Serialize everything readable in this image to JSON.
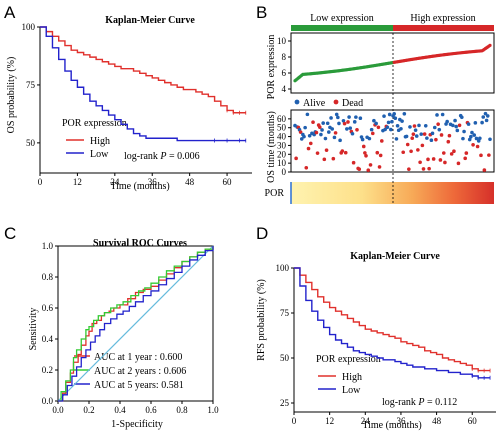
{
  "panels": {
    "A": {
      "letter": "A"
    },
    "B": {
      "letter": "B"
    },
    "C": {
      "letter": "C"
    },
    "D": {
      "letter": "D"
    }
  },
  "chart_data": [
    {
      "id": "A",
      "type": "line",
      "title": "Kaplan-Meier Curve",
      "xlabel": "Time (months)",
      "ylabel": "OS probability (%)",
      "xlim": [
        0,
        68
      ],
      "ylim": [
        37,
        100
      ],
      "xticks": [
        0,
        12,
        24,
        36,
        48,
        60
      ],
      "yticks": [
        50,
        75,
        100
      ],
      "legend_title": "POR  expression",
      "legend": "center-left",
      "annotation": {
        "prefix": "log-rank  ",
        "italic": "P",
        "suffix": " = 0.006"
      },
      "series": [
        {
          "name": "High",
          "color": "#e0302c",
          "x": [
            0,
            2,
            4,
            6,
            8,
            10,
            12,
            14,
            16,
            18,
            20,
            22,
            24,
            26,
            28,
            30,
            32,
            34,
            36,
            38,
            40,
            42,
            44,
            46,
            48,
            50,
            52,
            54,
            56,
            58,
            60,
            62,
            64,
            66
          ],
          "y": [
            100,
            98,
            96,
            94,
            92,
            90,
            89,
            88,
            87,
            86,
            85,
            84,
            83,
            82,
            82,
            81,
            80,
            79,
            78,
            77,
            76,
            75,
            74,
            73,
            73,
            72,
            71,
            70,
            68,
            66,
            64,
            63,
            63,
            63
          ]
        },
        {
          "name": "Low",
          "color": "#2222cc",
          "x": [
            0,
            2,
            4,
            6,
            8,
            10,
            12,
            14,
            16,
            18,
            20,
            22,
            24,
            26,
            28,
            30,
            32,
            34,
            36,
            38,
            40,
            44,
            48,
            52,
            56,
            60,
            64,
            66
          ],
          "y": [
            100,
            96,
            91,
            86,
            81,
            77,
            74,
            71,
            68,
            66,
            64,
            62,
            60,
            58,
            56,
            54,
            53,
            52,
            52,
            52,
            52,
            51,
            51,
            51,
            51,
            51,
            51,
            51
          ]
        }
      ]
    },
    {
      "id": "B",
      "type": "scatter",
      "group_labels": [
        "Low expression",
        "High expression"
      ],
      "group_colors": [
        "#2a9b3a",
        "#d62728"
      ],
      "top": {
        "ylabel": "POR expression",
        "ylim": [
          3.5,
          11
        ],
        "yticks": [
          4,
          6,
          8,
          10
        ],
        "n": 174,
        "split_index": 88,
        "range": [
          4.2,
          10.4
        ]
      },
      "bottom": {
        "ylabel": "OS time (months)",
        "ylim": [
          0,
          70
        ],
        "yticks": [
          0,
          10,
          20,
          30,
          40,
          50,
          60
        ],
        "legend": [
          {
            "name": "Alive",
            "color": "#2060b0"
          },
          {
            "name": "Dead",
            "color": "#d62728"
          }
        ]
      },
      "heatmap_label": "POR"
    },
    {
      "id": "C",
      "type": "line",
      "title": "Survival ROC Curves",
      "xlabel": "1-Specificity",
      "ylabel": "Sensitivity",
      "xlim": [
        0,
        1
      ],
      "ylim": [
        0,
        1
      ],
      "xticks": [
        0.0,
        0.2,
        0.4,
        0.6,
        0.8,
        1.0
      ],
      "yticks": [
        0.0,
        0.2,
        0.4,
        0.6,
        0.8,
        1.0
      ],
      "legend": "bottom-right",
      "series": [
        {
          "name": "AUC at 1 year : 0.600",
          "color": "#e0302c",
          "x": [
            0,
            0.03,
            0.05,
            0.08,
            0.1,
            0.13,
            0.15,
            0.18,
            0.2,
            0.22,
            0.25,
            0.28,
            0.3,
            0.33,
            0.36,
            0.4,
            0.45,
            0.5,
            0.55,
            0.6,
            0.65,
            0.7,
            0.75,
            0.8,
            0.85,
            0.9,
            0.95,
            1.0
          ],
          "y": [
            0,
            0.05,
            0.12,
            0.18,
            0.25,
            0.3,
            0.36,
            0.42,
            0.45,
            0.5,
            0.52,
            0.55,
            0.57,
            0.58,
            0.6,
            0.62,
            0.66,
            0.7,
            0.72,
            0.74,
            0.78,
            0.82,
            0.86,
            0.9,
            0.93,
            0.96,
            0.98,
            1.0
          ]
        },
        {
          "name": "AUC at 2 years : 0.606",
          "color": "#33cc33",
          "x": [
            0,
            0.02,
            0.05,
            0.08,
            0.1,
            0.12,
            0.15,
            0.18,
            0.2,
            0.23,
            0.26,
            0.3,
            0.34,
            0.38,
            0.42,
            0.47,
            0.52,
            0.56,
            0.6,
            0.65,
            0.7,
            0.75,
            0.8,
            0.85,
            0.9,
            0.95,
            1.0
          ],
          "y": [
            0,
            0.06,
            0.13,
            0.2,
            0.28,
            0.33,
            0.4,
            0.46,
            0.48,
            0.52,
            0.55,
            0.57,
            0.6,
            0.62,
            0.64,
            0.68,
            0.71,
            0.73,
            0.76,
            0.8,
            0.84,
            0.87,
            0.9,
            0.93,
            0.96,
            0.98,
            1.0
          ]
        },
        {
          "name": "AUC at 5 years: 0.581",
          "color": "#2222cc",
          "x": [
            0,
            0.03,
            0.06,
            0.09,
            0.12,
            0.15,
            0.18,
            0.21,
            0.24,
            0.27,
            0.3,
            0.34,
            0.38,
            0.42,
            0.46,
            0.5,
            0.55,
            0.6,
            0.65,
            0.7,
            0.75,
            0.8,
            0.85,
            0.9,
            0.95,
            1.0
          ],
          "y": [
            0,
            0.04,
            0.1,
            0.16,
            0.22,
            0.28,
            0.33,
            0.38,
            0.42,
            0.46,
            0.5,
            0.53,
            0.56,
            0.58,
            0.61,
            0.64,
            0.68,
            0.71,
            0.75,
            0.79,
            0.83,
            0.87,
            0.91,
            0.94,
            0.97,
            1.0
          ]
        }
      ]
    },
    {
      "id": "D",
      "type": "line",
      "title": "Kaplan-Meier Curve",
      "xlabel": "Time (months)",
      "ylabel": "RFS probability (%)",
      "xlim": [
        0,
        68
      ],
      "ylim": [
        20,
        100
      ],
      "xticks": [
        0,
        12,
        24,
        36,
        48,
        60
      ],
      "yticks": [
        25,
        50,
        75,
        100
      ],
      "legend_title": "POR  expression",
      "legend": "center-left",
      "annotation": {
        "prefix": "log-rank  ",
        "italic": "P",
        "suffix": " = 0.112"
      },
      "series": [
        {
          "name": "High",
          "color": "#e0302c",
          "x": [
            0,
            2,
            4,
            6,
            8,
            10,
            12,
            14,
            16,
            18,
            20,
            22,
            24,
            26,
            28,
            30,
            32,
            34,
            36,
            38,
            40,
            42,
            44,
            46,
            48,
            50,
            52,
            54,
            56,
            58,
            60,
            62,
            64,
            66
          ],
          "y": [
            100,
            96,
            92,
            88,
            84,
            81,
            78,
            76,
            74,
            72,
            70,
            68,
            66,
            65,
            64,
            63,
            62,
            61,
            59,
            58,
            57,
            56,
            54,
            53,
            52,
            50,
            49,
            48,
            47,
            46,
            44,
            43,
            43,
            43
          ]
        },
        {
          "name": "Low",
          "color": "#2222cc",
          "x": [
            0,
            2,
            4,
            6,
            8,
            10,
            12,
            14,
            16,
            18,
            20,
            22,
            24,
            26,
            28,
            30,
            32,
            34,
            36,
            38,
            40,
            42,
            44,
            46,
            48,
            50,
            52,
            54,
            56,
            58,
            60,
            62,
            64,
            66
          ],
          "y": [
            100,
            90,
            82,
            76,
            71,
            67,
            63,
            60,
            58,
            56,
            54,
            53,
            52,
            51,
            50,
            49,
            49,
            48,
            47,
            46,
            45,
            45,
            44,
            44,
            43,
            43,
            42,
            42,
            41,
            41,
            40,
            39,
            39,
            39
          ]
        }
      ]
    }
  ]
}
